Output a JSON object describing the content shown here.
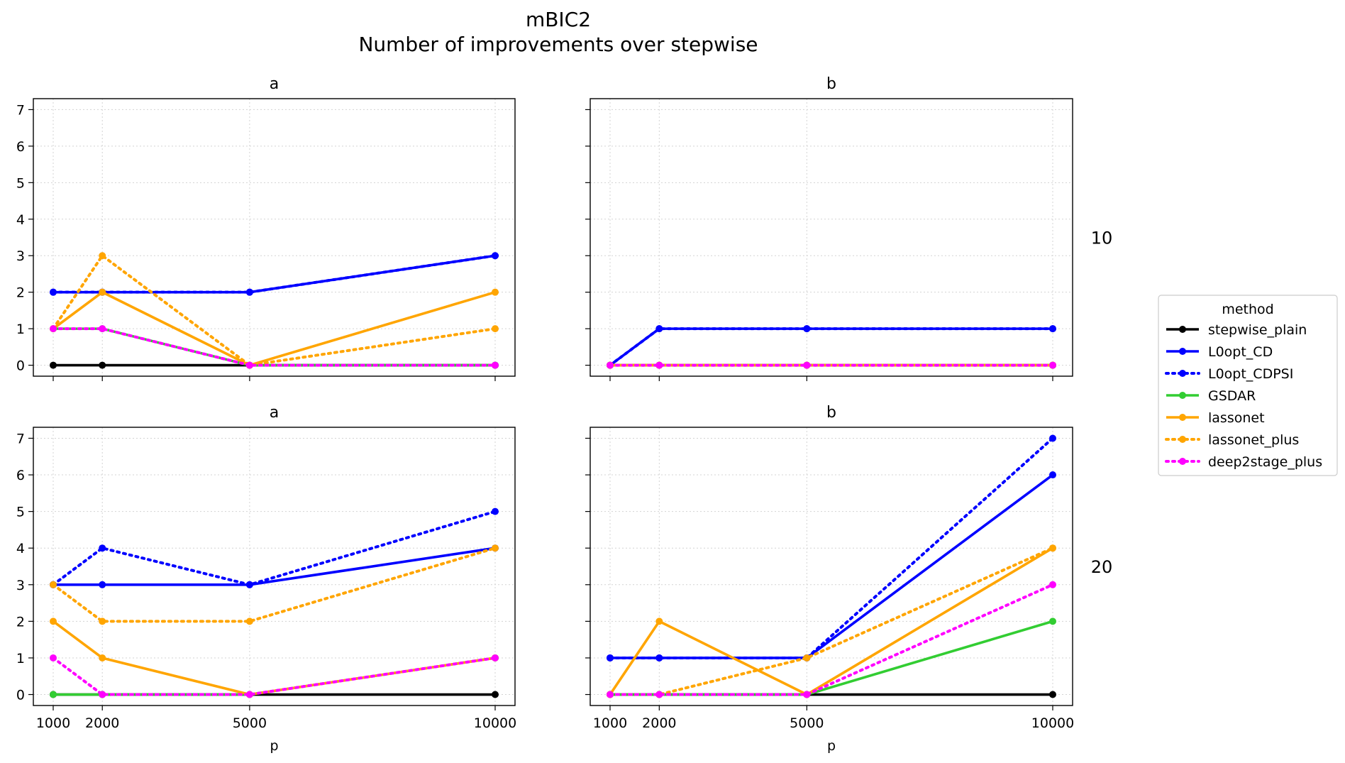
{
  "figure": {
    "title": "mBIC2",
    "subtitle": "Number of improvements over stepwise",
    "legend_title": "method",
    "legend_position": "right"
  },
  "methods": [
    {
      "name": "stepwise_plain",
      "color": "#000000",
      "style": "solid"
    },
    {
      "name": "L0opt_CD",
      "color": "#0000ff",
      "style": "solid"
    },
    {
      "name": "L0opt_CDPSI",
      "color": "#0000ff",
      "style": "dotted"
    },
    {
      "name": "GSDAR",
      "color": "#32cd32",
      "style": "solid"
    },
    {
      "name": "lassonet",
      "color": "#ffa500",
      "style": "solid"
    },
    {
      "name": "lassonet_plus",
      "color": "#ffa500",
      "style": "dotted"
    },
    {
      "name": "deep2stage_plus",
      "color": "#ff00ff",
      "style": "dotted"
    }
  ],
  "chart_data": [
    {
      "type": "line",
      "title": "a",
      "row_label": "10",
      "xlabel": "",
      "ylabel": "",
      "x": [
        1000,
        2000,
        5000,
        10000
      ],
      "x_ticks": [
        "1000",
        "2000",
        "5000",
        "10000"
      ],
      "ylim": [
        -0.3,
        7.3
      ],
      "y_ticks": [
        "0",
        "1",
        "2",
        "3",
        "4",
        "5",
        "6",
        "7"
      ],
      "grid": true,
      "series": [
        {
          "name": "stepwise_plain",
          "values": [
            0,
            0,
            0,
            0
          ]
        },
        {
          "name": "L0opt_CD",
          "values": [
            2,
            2,
            2,
            3
          ]
        },
        {
          "name": "L0opt_CDPSI",
          "values": [
            2,
            2,
            2,
            3
          ]
        },
        {
          "name": "GSDAR",
          "values": [
            1,
            1,
            0,
            0
          ]
        },
        {
          "name": "lassonet",
          "values": [
            1,
            2,
            0,
            2
          ]
        },
        {
          "name": "lassonet_plus",
          "values": [
            1,
            3,
            0,
            1
          ]
        },
        {
          "name": "deep2stage_plus",
          "values": [
            1,
            1,
            0,
            0
          ]
        }
      ]
    },
    {
      "type": "line",
      "title": "b",
      "row_label": "",
      "xlabel": "",
      "ylabel": "",
      "x": [
        1000,
        2000,
        5000,
        10000
      ],
      "x_ticks": [
        "1000",
        "2000",
        "5000",
        "10000"
      ],
      "ylim": [
        -0.3,
        7.3
      ],
      "y_ticks": [
        "0",
        "1",
        "2",
        "3",
        "4",
        "5",
        "6",
        "7"
      ],
      "grid": true,
      "series": [
        {
          "name": "stepwise_plain",
          "values": [
            0,
            0,
            0,
            0
          ]
        },
        {
          "name": "L0opt_CD",
          "values": [
            0,
            1,
            1,
            1
          ]
        },
        {
          "name": "L0opt_CDPSI",
          "values": [
            0,
            1,
            1,
            1
          ]
        },
        {
          "name": "GSDAR",
          "values": [
            0,
            0,
            0,
            0
          ]
        },
        {
          "name": "lassonet",
          "values": [
            0,
            0,
            0,
            0
          ]
        },
        {
          "name": "lassonet_plus",
          "values": [
            0,
            0,
            0,
            0
          ]
        },
        {
          "name": "deep2stage_plus",
          "values": [
            0,
            0,
            0,
            0
          ]
        }
      ]
    },
    {
      "type": "line",
      "title": "a",
      "row_label": "20",
      "xlabel": "p",
      "ylabel": "",
      "x": [
        1000,
        2000,
        5000,
        10000
      ],
      "x_ticks": [
        "1000",
        "2000",
        "5000",
        "10000"
      ],
      "ylim": [
        -0.3,
        7.3
      ],
      "y_ticks": [
        "0",
        "1",
        "2",
        "3",
        "4",
        "5",
        "6",
        "7"
      ],
      "grid": true,
      "series": [
        {
          "name": "stepwise_plain",
          "values": [
            0,
            0,
            0,
            0
          ]
        },
        {
          "name": "L0opt_CD",
          "values": [
            3,
            3,
            3,
            4
          ]
        },
        {
          "name": "L0opt_CDPSI",
          "values": [
            3,
            4,
            3,
            5
          ]
        },
        {
          "name": "GSDAR",
          "values": [
            0,
            0,
            0,
            1
          ]
        },
        {
          "name": "lassonet",
          "values": [
            2,
            1,
            0,
            1
          ]
        },
        {
          "name": "lassonet_plus",
          "values": [
            3,
            2,
            2,
            4
          ]
        },
        {
          "name": "deep2stage_plus",
          "values": [
            1,
            0,
            0,
            1
          ]
        }
      ]
    },
    {
      "type": "line",
      "title": "b",
      "row_label": "",
      "xlabel": "p",
      "ylabel": "",
      "x": [
        1000,
        2000,
        5000,
        10000
      ],
      "x_ticks": [
        "1000",
        "2000",
        "5000",
        "10000"
      ],
      "ylim": [
        -0.3,
        7.3
      ],
      "y_ticks": [
        "0",
        "1",
        "2",
        "3",
        "4",
        "5",
        "6",
        "7"
      ],
      "grid": true,
      "series": [
        {
          "name": "stepwise_plain",
          "values": [
            0,
            0,
            0,
            0
          ]
        },
        {
          "name": "L0opt_CD",
          "values": [
            1,
            1,
            1,
            6
          ]
        },
        {
          "name": "L0opt_CDPSI",
          "values": [
            1,
            1,
            1,
            7
          ]
        },
        {
          "name": "GSDAR",
          "values": [
            0,
            0,
            0,
            2
          ]
        },
        {
          "name": "lassonet",
          "values": [
            0,
            2,
            0,
            4
          ]
        },
        {
          "name": "lassonet_plus",
          "values": [
            0,
            0,
            1,
            4
          ]
        },
        {
          "name": "deep2stage_plus",
          "values": [
            0,
            0,
            0,
            3
          ]
        }
      ]
    }
  ]
}
